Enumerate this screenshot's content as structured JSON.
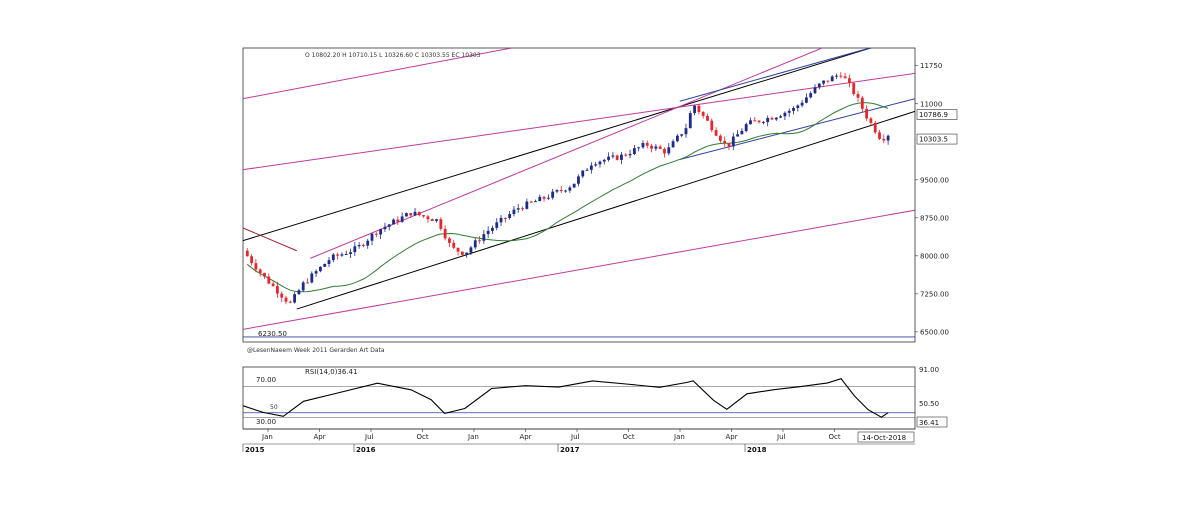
{
  "chart_data": [
    {
      "type": "candlestick",
      "ohlc_label": "O 10802.20  H 10710.15  L 10326.60  C 10303.55  EC 10303",
      "watermark": "@LesenNaeem Week 2011 Gerarden Art Data",
      "y_ticks": [
        {
          "value": 11750,
          "label": "11750"
        },
        {
          "value": 11000,
          "label": "11000"
        },
        {
          "value": 9500,
          "label": "9500.00"
        },
        {
          "value": 8750,
          "label": "8750.00"
        },
        {
          "value": 8000,
          "label": "8000.00"
        },
        {
          "value": 7250,
          "label": "7250.00"
        },
        {
          "value": 6500,
          "label": "6500.00"
        }
      ],
      "value_boxes": [
        {
          "value": 10786.9,
          "label": "10786.9"
        },
        {
          "value": 10303.5,
          "label": "10303.5"
        }
      ],
      "low_annotation": "6230.50",
      "ylim": [
        6300,
        12100
      ],
      "colors": {
        "up": "#1c2a8c",
        "down": "#e8242c",
        "ma": "#2e7d32",
        "channel": "#000000",
        "pink": "#c0399e",
        "blue": "#3040a0"
      }
    },
    {
      "type": "line",
      "indicator_label": "RSI(14,0)36.41",
      "levels": [
        70,
        30
      ],
      "level_labels": [
        "70.00",
        "30.00"
      ],
      "axis_ticks": [
        "91.00",
        "50.50"
      ],
      "current_value": "36.41",
      "current_value_num": 36.41,
      "level_marker": "50",
      "ylim": [
        15,
        95
      ],
      "color": "#000000"
    }
  ],
  "x_axis": {
    "months": [
      "Jan",
      "Apr",
      "Jul",
      "Oct",
      "Jan",
      "Apr",
      "Jul",
      "Oct",
      "Jan",
      "Apr",
      "Jul",
      "Oct"
    ],
    "years": [
      "2015",
      "2016",
      "2017",
      "2018"
    ],
    "date_box": "14-Oct-2018"
  }
}
